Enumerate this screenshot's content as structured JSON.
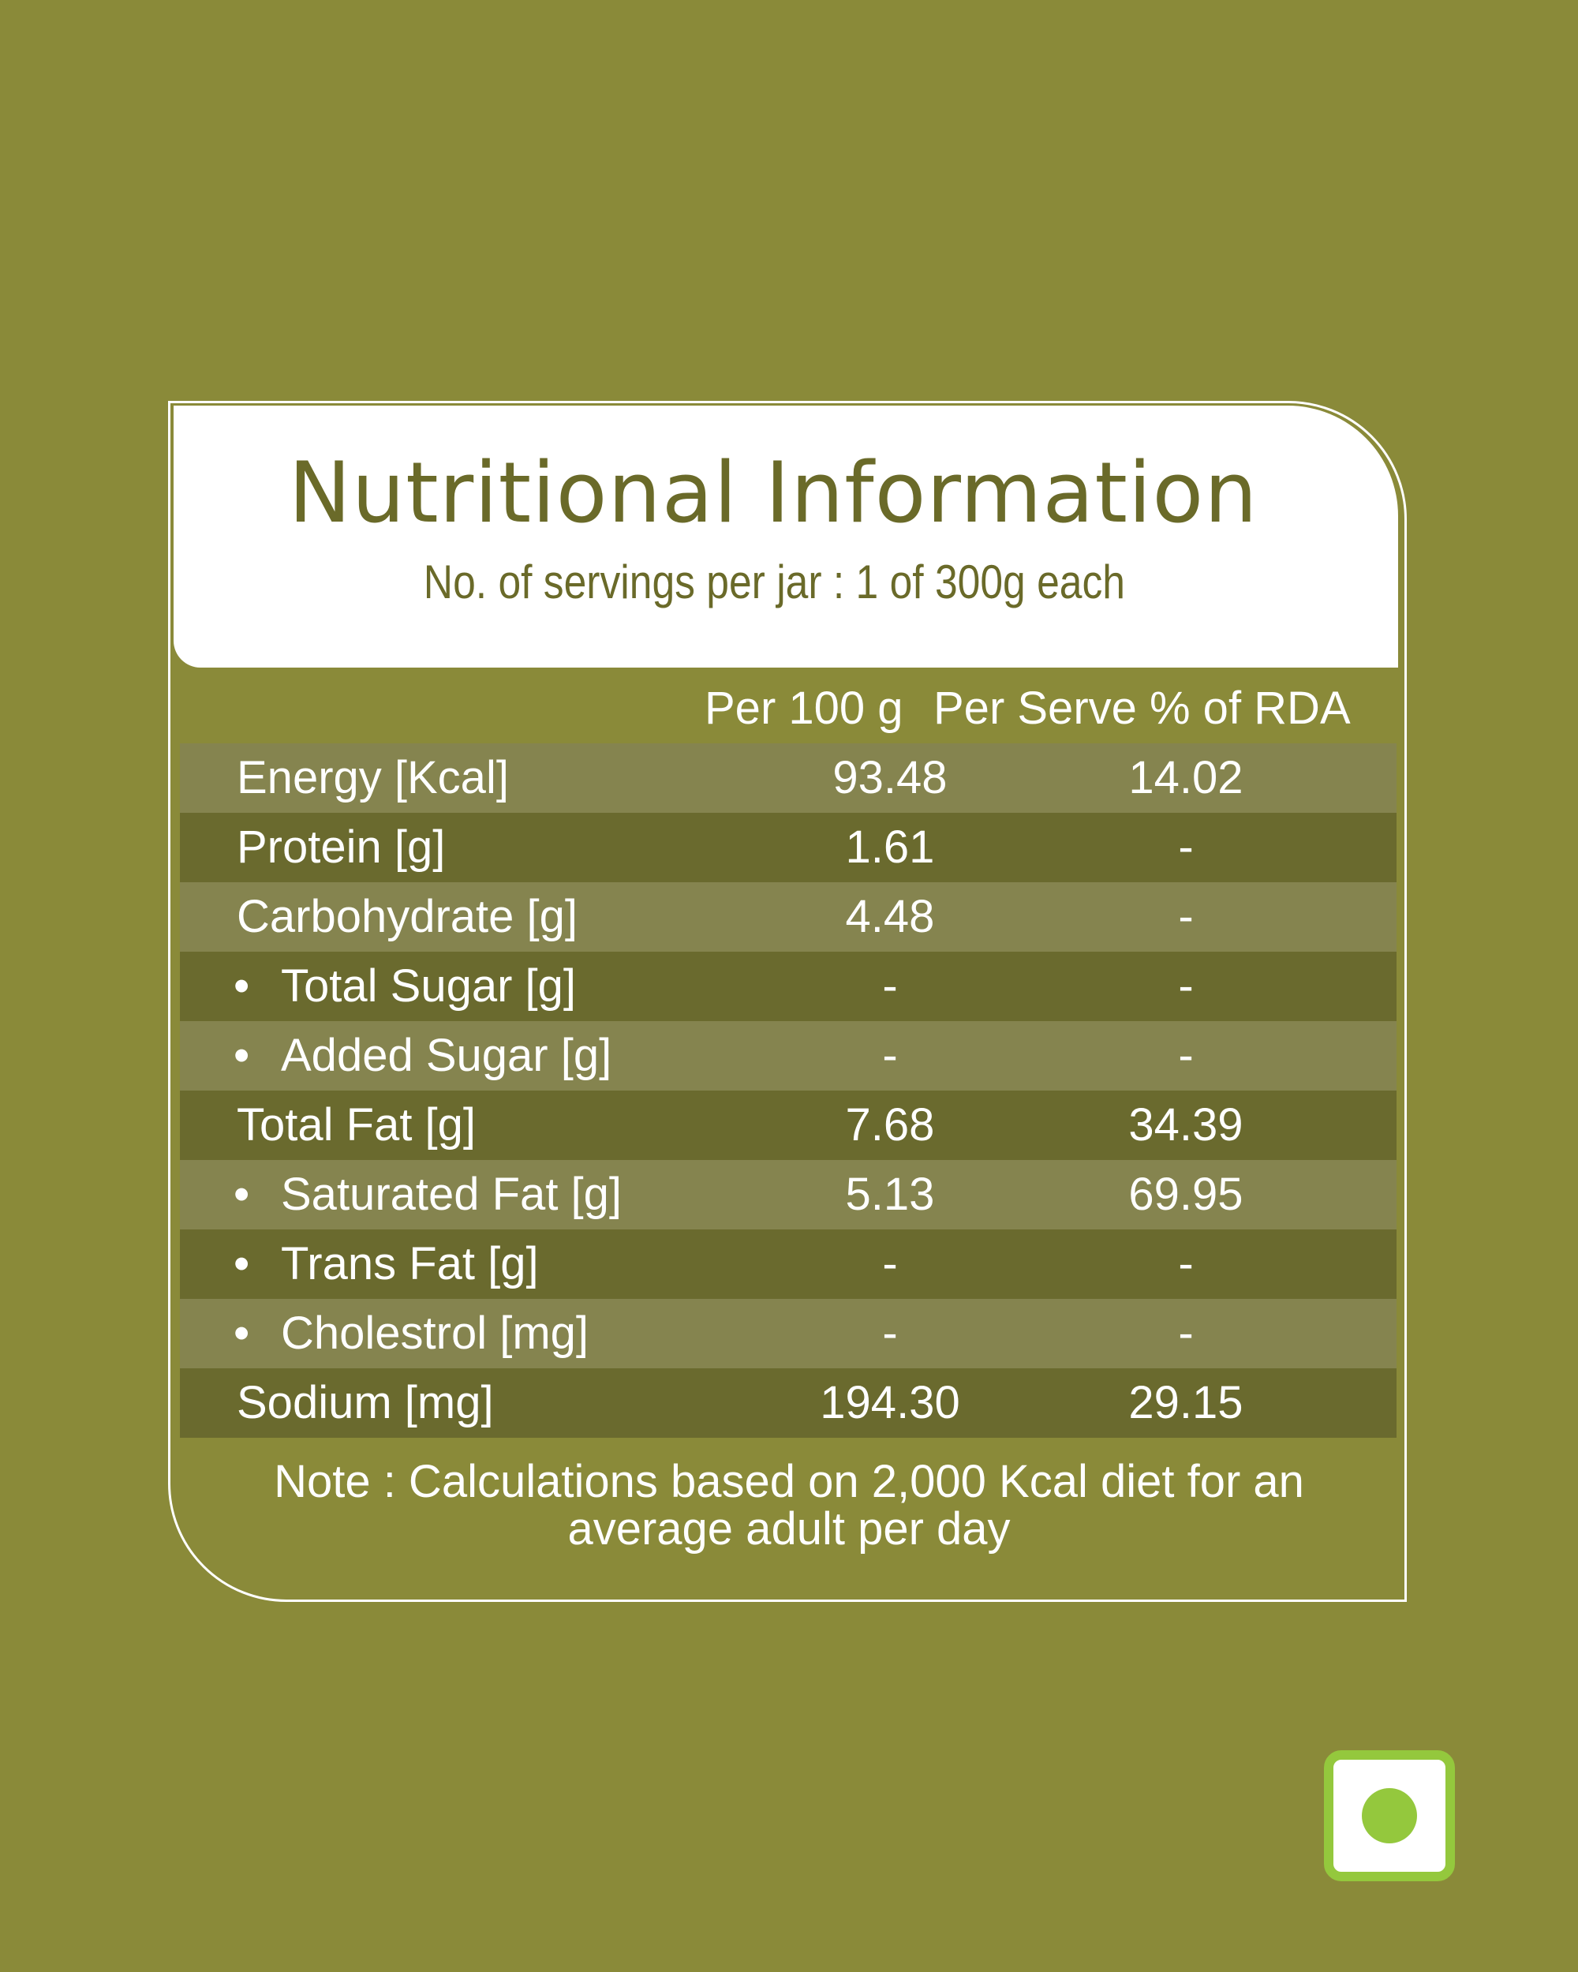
{
  "header": {
    "title": "Nutritional Information",
    "subtitle": "No. of servings per jar : 1 of 300g each"
  },
  "table": {
    "columns": [
      "Per 100 g",
      "Per  Serve  %  of RDA"
    ],
    "rows": [
      {
        "label": "Energy [Kcal]",
        "bullet": false,
        "per100g": "93.48",
        "perServe": "14.02"
      },
      {
        "label": "Protein [g]",
        "bullet": false,
        "per100g": "1.61",
        "perServe": "-"
      },
      {
        "label": "Carbohydrate [g]",
        "bullet": false,
        "per100g": "4.48",
        "perServe": "-"
      },
      {
        "label": "Total Sugar [g]",
        "bullet": true,
        "per100g": "-",
        "perServe": "-"
      },
      {
        "label": "Added Sugar [g]",
        "bullet": true,
        "per100g": "-",
        "perServe": "-"
      },
      {
        "label": "Total Fat [g]",
        "bullet": false,
        "per100g": "7.68",
        "perServe": "34.39"
      },
      {
        "label": "Saturated Fat [g]",
        "bullet": true,
        "per100g": "5.13",
        "perServe": "69.95"
      },
      {
        "label": "Trans Fat [g]",
        "bullet": true,
        "per100g": "-",
        "perServe": "-"
      },
      {
        "label": "Cholestrol [mg]",
        "bullet": true,
        "per100g": "-",
        "perServe": "-"
      },
      {
        "label": "Sodium [mg]",
        "bullet": false,
        "per100g": "194.30",
        "perServe": "29.15"
      }
    ]
  },
  "note": {
    "line1": "Note :  Calculations based on 2,000 Kcal diet for an",
    "line2": "average adult per day"
  },
  "colors": {
    "background": "#8a8a39",
    "row_light": "#85844f",
    "row_dark": "#6a6a2e",
    "title_text": "#6a6a29",
    "veg_green": "#94c83d"
  },
  "icons": {
    "veg_mark": "vegetarian-symbol-icon",
    "bullet": "•"
  }
}
